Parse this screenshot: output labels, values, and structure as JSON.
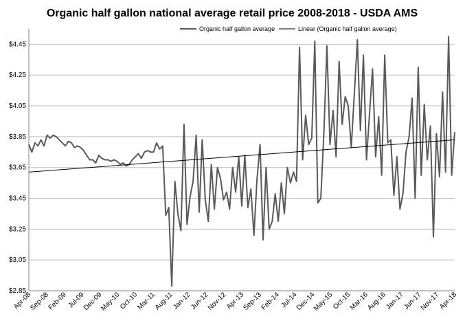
{
  "chart_data": {
    "type": "line",
    "title": "Organic half gallon national average retail price 2008-2018 - USDA AMS",
    "xlabel": "",
    "ylabel": "",
    "ylim": [
      2.85,
      4.55
    ],
    "yticks": [
      "$2.85",
      "$3.05",
      "$3.25",
      "$3.45",
      "$3.65",
      "$3.85",
      "$4.05",
      "$4.25",
      "$4.45"
    ],
    "ytick_values": [
      2.85,
      3.05,
      3.25,
      3.45,
      3.65,
      3.85,
      4.05,
      4.25,
      4.45
    ],
    "xticks": [
      "Apr-08",
      "Sep-08",
      "Feb-09",
      "Jul-09",
      "Dec-09",
      "May-10",
      "Oct-10",
      "Mar-11",
      "Aug-11",
      "Jan-12",
      "Jun-12",
      "Nov-12",
      "Apr-13",
      "Sep-13",
      "Feb-14",
      "Jul-14",
      "Dec-14",
      "May-15",
      "Oct-15",
      "Mar-16",
      "Aug-16",
      "Jan-17",
      "Jun-17",
      "Nov-17",
      "Apr-18"
    ],
    "grid": true,
    "legend_position": "top-right",
    "series": [
      {
        "name": "Organic half gallon average",
        "color": "#595959",
        "x_start": "Apr-08",
        "x_end": "Apr-18",
        "values": [
          3.8,
          3.75,
          3.81,
          3.79,
          3.83,
          3.79,
          3.86,
          3.84,
          3.86,
          3.85,
          3.83,
          3.81,
          3.79,
          3.82,
          3.81,
          3.78,
          3.79,
          3.78,
          3.76,
          3.73,
          3.7,
          3.7,
          3.68,
          3.73,
          3.71,
          3.7,
          3.7,
          3.69,
          3.7,
          3.69,
          3.67,
          3.68,
          3.66,
          3.67,
          3.7,
          3.72,
          3.74,
          3.71,
          3.75,
          3.76,
          3.75,
          3.75,
          3.81,
          3.77,
          3.79,
          3.34,
          3.39,
          2.88,
          3.56,
          3.35,
          3.24,
          3.93,
          3.28,
          3.46,
          3.56,
          3.86,
          3.36,
          3.83,
          3.44,
          3.3,
          3.67,
          3.38,
          3.65,
          3.58,
          3.44,
          3.49,
          3.38,
          3.65,
          3.49,
          3.72,
          3.4,
          3.73,
          3.39,
          3.51,
          3.21,
          3.57,
          3.8,
          3.18,
          3.65,
          3.25,
          3.3,
          3.48,
          3.3,
          3.55,
          3.35,
          3.65,
          3.55,
          3.62,
          3.56,
          4.43,
          3.7,
          3.99,
          3.8,
          3.84,
          4.47,
          3.42,
          3.45,
          3.88,
          4.44,
          3.8,
          4.02,
          3.72,
          4.34,
          3.93,
          4.11,
          4.05,
          3.78,
          4.13,
          4.48,
          3.89,
          4.38,
          3.7,
          4.0,
          4.29,
          3.72,
          3.98,
          3.6,
          4.38,
          3.81,
          3.83,
          3.47,
          3.72,
          3.38,
          3.48,
          3.75,
          3.85,
          4.1,
          3.45,
          4.3,
          3.6,
          4.06,
          3.7,
          3.92,
          3.2,
          3.87,
          3.59,
          4.14,
          3.62,
          4.5,
          3.6,
          3.88
        ]
      },
      {
        "name": "Linear (Organic half gallon average)",
        "color": "#000000",
        "x_start": "Apr-08",
        "x_end": "Apr-18",
        "values": [
          3.62,
          3.83
        ]
      }
    ]
  }
}
